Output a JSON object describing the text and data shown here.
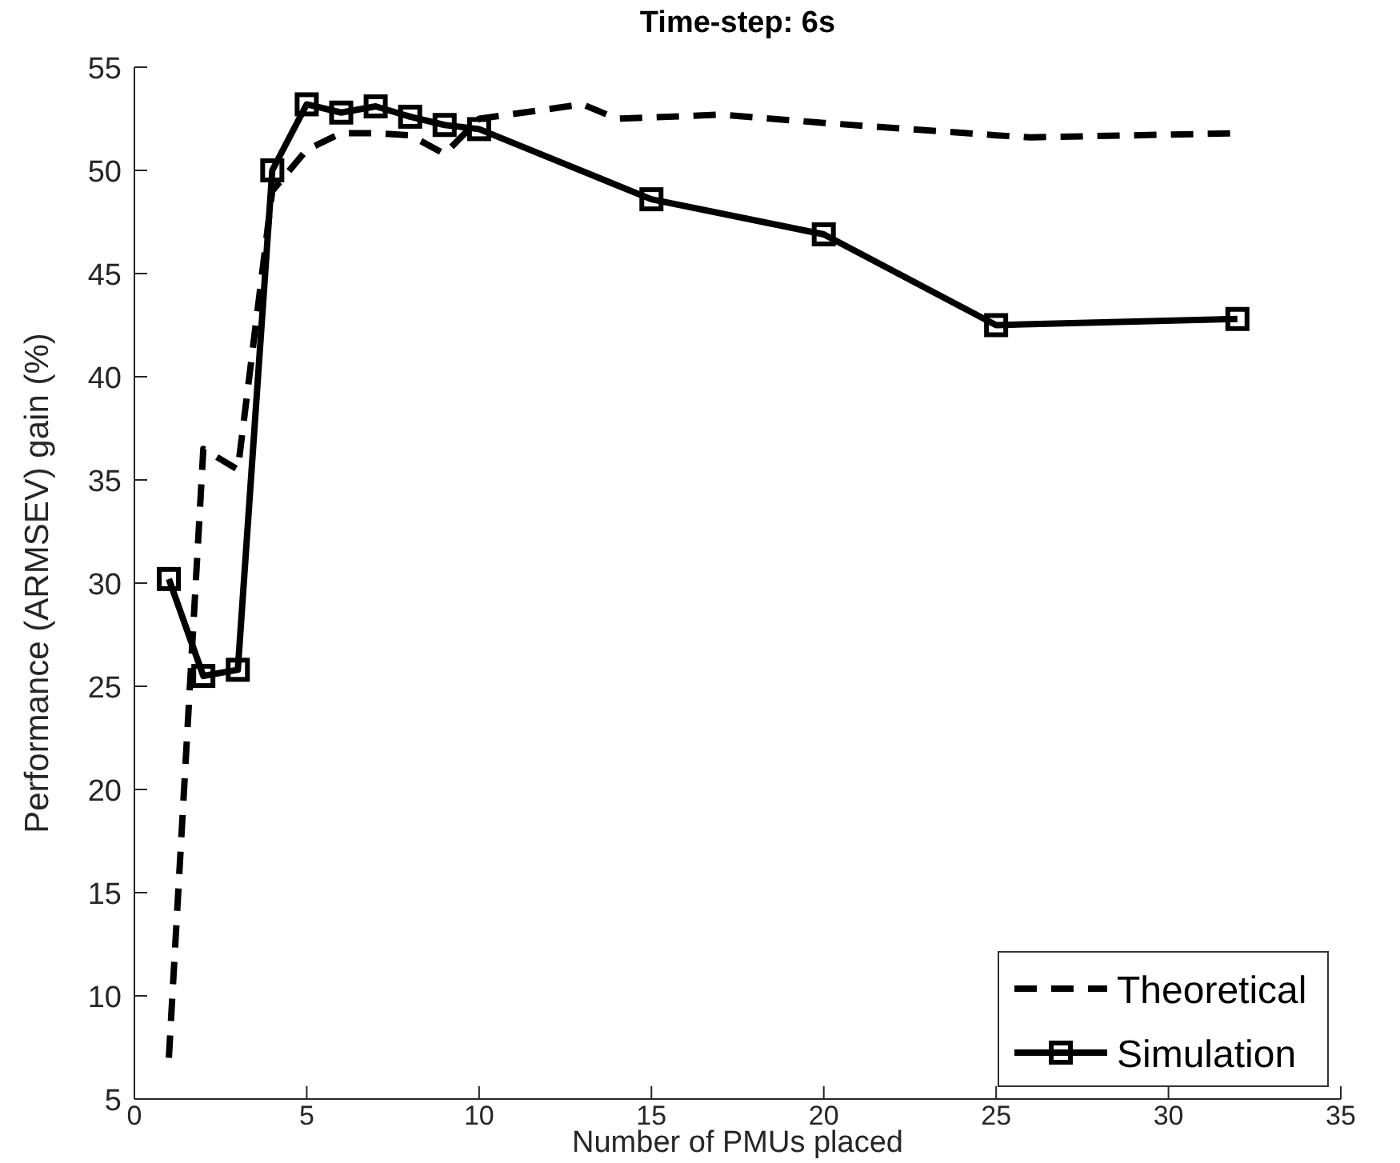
{
  "chart_data": {
    "type": "line",
    "title": "Time-step: 6s",
    "xlabel": "Number of PMUs placed",
    "ylabel": "Performance (ARMSEV) gain (%)",
    "xlim": [
      0,
      35
    ],
    "xticks": [
      0,
      5,
      10,
      15,
      20,
      25,
      30,
      35
    ],
    "ylim": [
      5,
      55
    ],
    "yticks": [
      5,
      10,
      15,
      20,
      25,
      30,
      35,
      40,
      45,
      50,
      55
    ],
    "grid": false,
    "legend": "bottom right",
    "series": [
      {
        "name": "Theoretical",
        "color": "#000000",
        "line_style": "dashed",
        "marker": "none",
        "x": [
          1,
          2,
          3,
          4,
          5,
          6,
          7,
          8,
          9,
          10,
          13,
          14,
          17,
          20,
          25,
          26,
          32
        ],
        "values": [
          7,
          36.5,
          35.5,
          49,
          51,
          51.8,
          51.8,
          51.7,
          50.8,
          52.5,
          53.2,
          52.5,
          52.7,
          52.3,
          51.7,
          51.6,
          51.8
        ]
      },
      {
        "name": "Simulation",
        "color": "#000000",
        "line_style": "solid",
        "marker": "square",
        "x": [
          1,
          2,
          3,
          4,
          5,
          6,
          7,
          8,
          9,
          10,
          15,
          20,
          25,
          32
        ],
        "values": [
          30.2,
          25.5,
          25.8,
          50,
          53.2,
          52.8,
          53.1,
          52.6,
          52.2,
          52,
          48.6,
          46.9,
          42.5,
          42.8
        ]
      }
    ]
  }
}
